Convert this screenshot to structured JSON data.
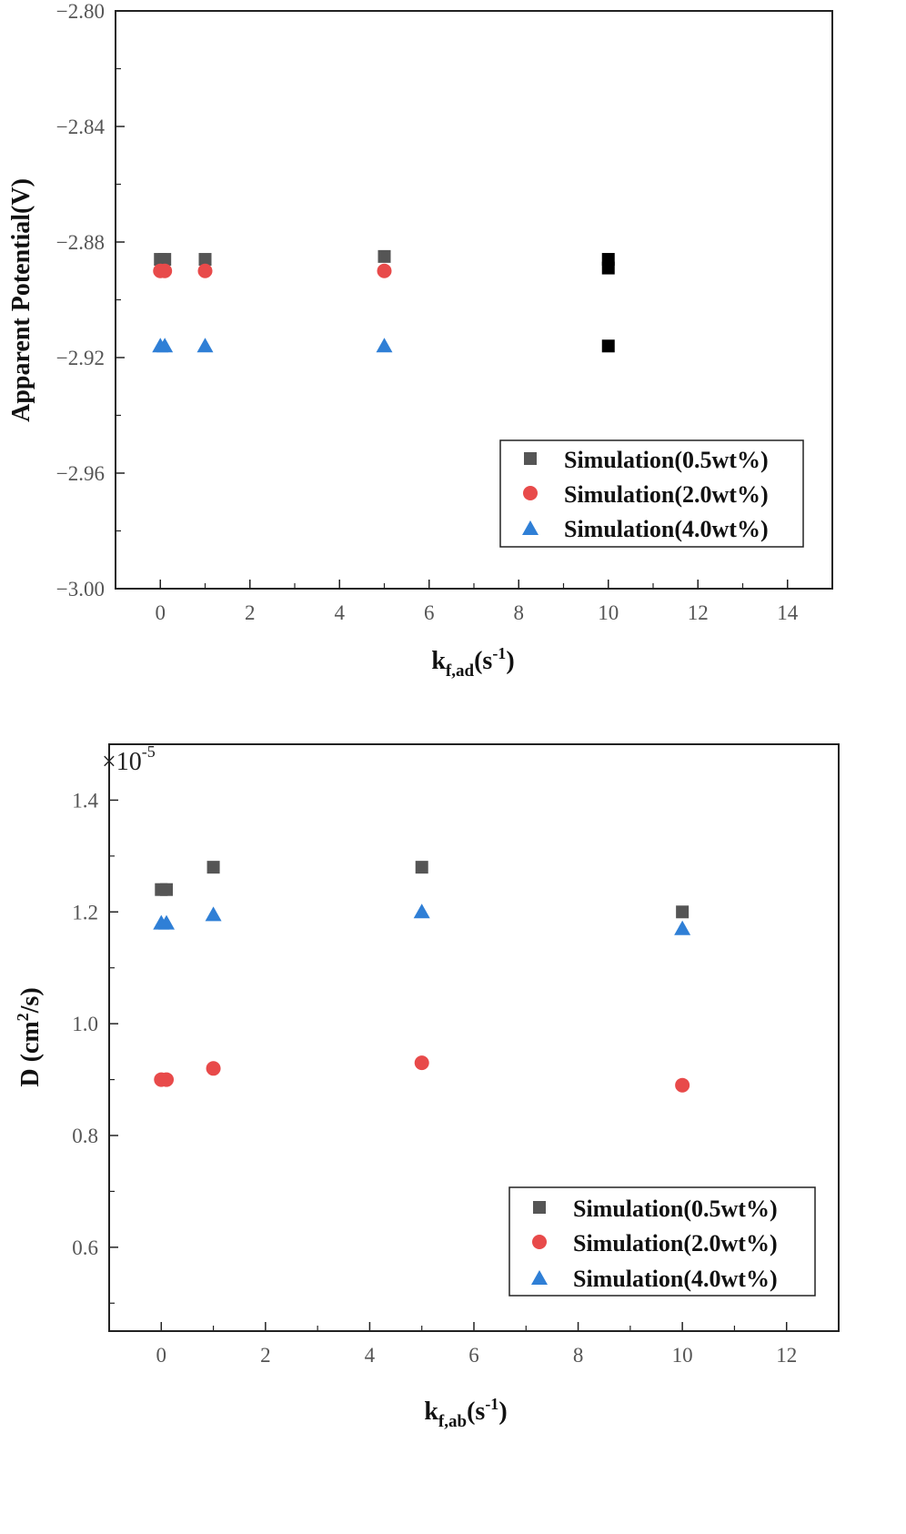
{
  "chart_data": [
    {
      "type": "scatter",
      "xlabel": "k",
      "xlabel_sub": "f,ad",
      "xlabel_unit": "(s",
      "xlabel_sup": "-1",
      "xlabel_close": ")",
      "ylabel": "Apparent Potential(V)",
      "xlim": [
        -1,
        15
      ],
      "ylim": [
        -3.0,
        -2.8
      ],
      "xticks": [
        "0",
        "2",
        "4",
        "6",
        "8",
        "10",
        "12",
        "14"
      ],
      "yticks": [
        "−3.00",
        "−2.96",
        "−2.92",
        "−2.88",
        "−2.84",
        "−2.80"
      ],
      "legend_position": "bottom-right",
      "series": [
        {
          "name": "Simulation(0.5wt%)",
          "marker": "square",
          "color": "#555555",
          "x": [
            0,
            0.1,
            1,
            5
          ],
          "y": [
            -2.886,
            -2.886,
            -2.886,
            -2.885
          ]
        },
        {
          "name": "Simulation(2.0wt%)",
          "marker": "circle",
          "color": "#e84a4a",
          "x": [
            0,
            0.1,
            1,
            5
          ],
          "y": [
            -2.89,
            -2.89,
            -2.89,
            -2.89
          ]
        },
        {
          "name": "Simulation(4.0wt%)",
          "marker": "triangle",
          "color": "#2f7fd6",
          "x": [
            0,
            0.1,
            1,
            5
          ],
          "y": [
            -2.916,
            -2.916,
            -2.916,
            -2.916
          ]
        }
      ],
      "extra_points": {
        "color": "#000000",
        "x": [
          10,
          10,
          10
        ],
        "y": [
          -2.886,
          -2.889,
          -2.916
        ]
      }
    },
    {
      "type": "scatter",
      "multiplier": "×10",
      "multiplier_exp": "-5",
      "xlabel": "k",
      "xlabel_sub": "f,ab",
      "xlabel_unit": "(s",
      "xlabel_sup": "-1",
      "xlabel_close": ")",
      "ylabel": "D (cm",
      "ylabel_sup": "2",
      "ylabel_close": "/s)",
      "xlim": [
        -1,
        13
      ],
      "ylim": [
        0.45,
        1.5
      ],
      "xticks": [
        "0",
        "2",
        "4",
        "6",
        "8",
        "10",
        "12"
      ],
      "yticks": [
        "0.6",
        "0.8",
        "1.0",
        "1.2",
        "1.4"
      ],
      "legend_position": "bottom-right",
      "series": [
        {
          "name": "Simulation(0.5wt%)",
          "marker": "square",
          "color": "#555555",
          "x": [
            0,
            0.1,
            1,
            5,
            10
          ],
          "y": [
            1.24,
            1.24,
            1.28,
            1.28,
            1.2
          ]
        },
        {
          "name": "Simulation(2.0wt%)",
          "marker": "circle",
          "color": "#e84a4a",
          "x": [
            0,
            0.1,
            1,
            5,
            10
          ],
          "y": [
            0.9,
            0.9,
            0.92,
            0.93,
            0.89
          ]
        },
        {
          "name": "Simulation(4.0wt%)",
          "marker": "triangle",
          "color": "#2f7fd6",
          "x": [
            0,
            0.1,
            1,
            5,
            10
          ],
          "y": [
            1.18,
            1.18,
            1.195,
            1.2,
            1.17
          ]
        }
      ]
    }
  ]
}
